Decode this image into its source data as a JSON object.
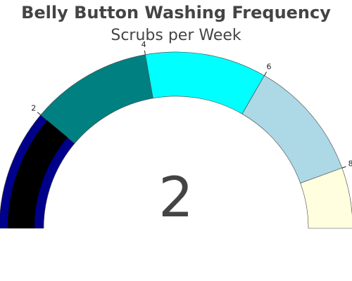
{
  "chart_data": {
    "type": "gauge",
    "title": "Belly Button Washing Frequency",
    "subtitle": "Scrubs per Week",
    "value": 2,
    "value_label": "2",
    "range": [
      0,
      9
    ],
    "tick_values": [
      2,
      4,
      6,
      8
    ],
    "tick_labels": [
      "2",
      "4",
      "6",
      "8"
    ],
    "bands": [
      {
        "from": 0,
        "to": 2,
        "color": "#00008b"
      },
      {
        "from": 2,
        "to": 4,
        "color": "#008080"
      },
      {
        "from": 4,
        "to": 6,
        "color": "#00ffff"
      },
      {
        "from": 6,
        "to": 8,
        "color": "#add8e6"
      },
      {
        "from": 8,
        "to": 9,
        "color": "#ffffe0"
      }
    ],
    "bar": {
      "from": 0,
      "to": 2,
      "color": "#000000"
    },
    "outline_color": "#444444",
    "grid": false
  }
}
